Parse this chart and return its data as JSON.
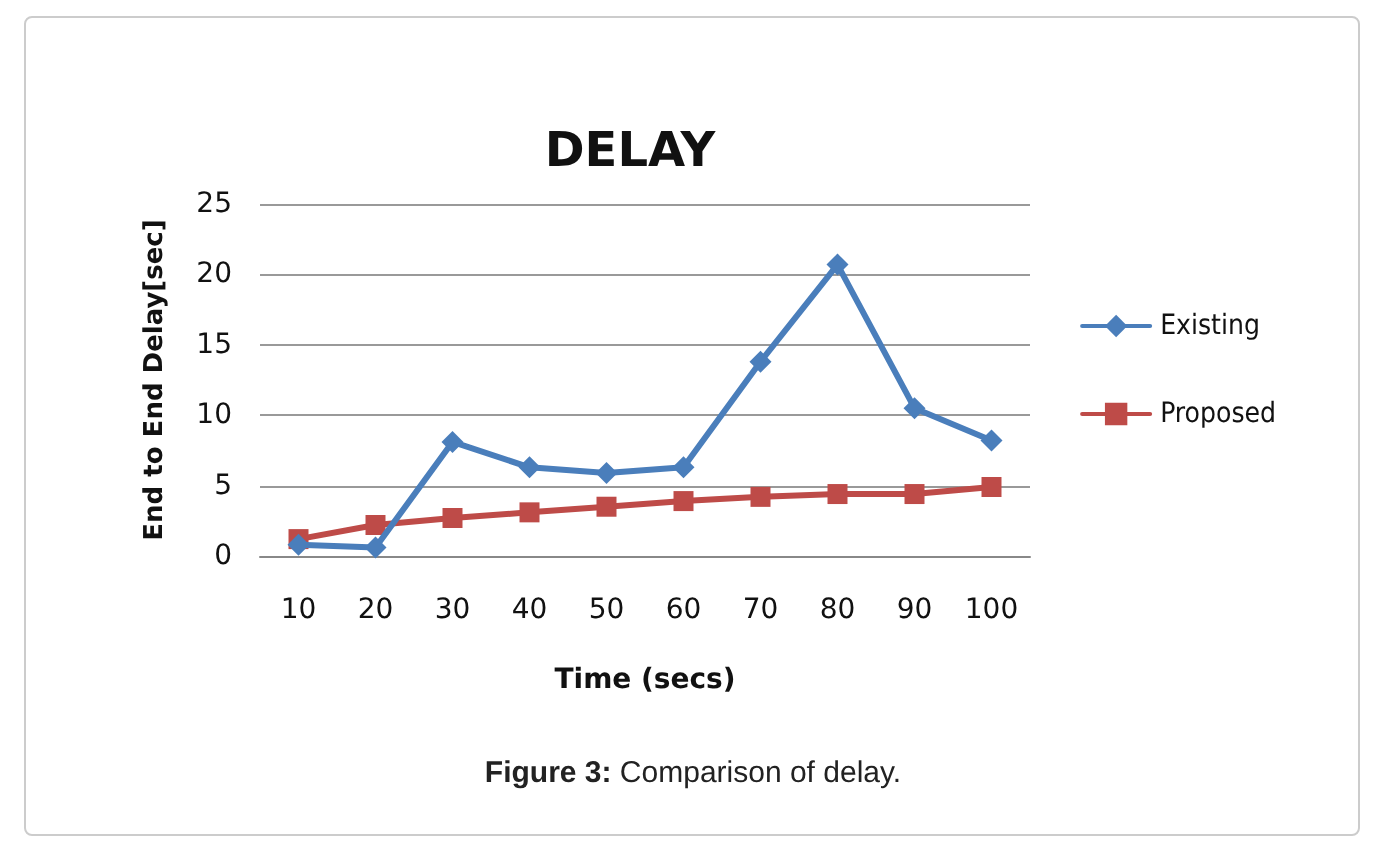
{
  "chart_data": {
    "type": "line",
    "title": "DELAY",
    "xlabel": "Time (secs)",
    "ylabel": "End to End Delay[sec]",
    "annotations": [
      "Figure 3: Comparison of delay."
    ],
    "categories": [
      "10",
      "20",
      "30",
      "40",
      "50",
      "60",
      "70",
      "80",
      "90",
      "100"
    ],
    "series": [
      {
        "name": "Existing",
        "color": "#4a7ebb",
        "marker": "diamond",
        "values": [
          0.8,
          0.6,
          8.1,
          6.3,
          5.9,
          6.3,
          13.8,
          20.7,
          10.5,
          8.2
        ]
      },
      {
        "name": "Proposed",
        "color": "#be4b48",
        "marker": "square",
        "values": [
          1.2,
          2.2,
          2.7,
          3.1,
          3.5,
          3.9,
          4.2,
          4.4,
          4.4,
          4.9
        ]
      }
    ],
    "ylim": [
      0,
      25
    ],
    "yticks": [
      0,
      5,
      10,
      15,
      20,
      25
    ],
    "grid": "y",
    "legend": "right",
    "line_style": "solid"
  }
}
